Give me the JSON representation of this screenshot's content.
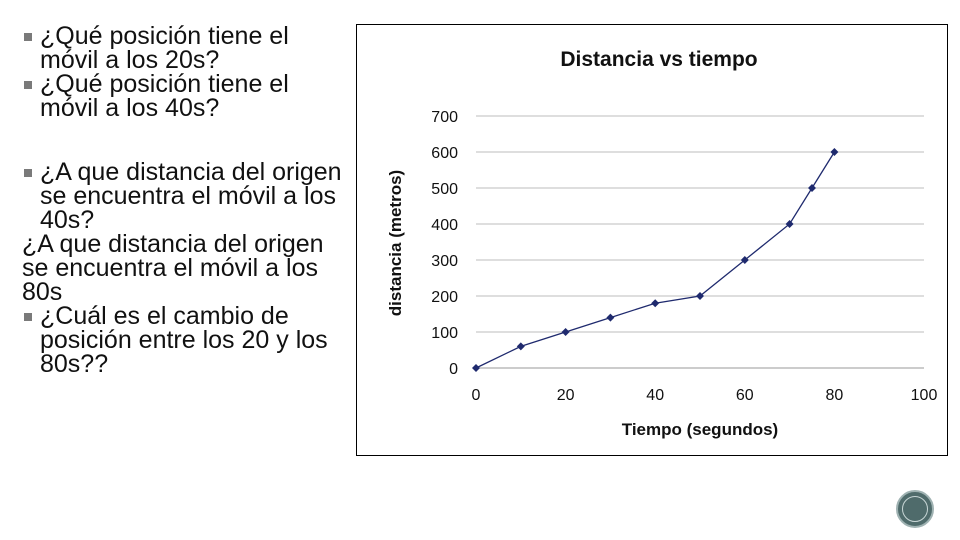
{
  "questions": {
    "q1": "¿Qué posición tiene el móvil a los 20s?",
    "q2": "¿Qué posición tiene el móvil a los 40s?",
    "q3": "¿A que distancia del origen se encuentra el móvil a los 40s?",
    "q4": "¿A que distancia del origen se encuentra el móvil a los 80s",
    "q5": "¿Cuál es el cambio de posición entre los 20 y los 80s??"
  },
  "chart_data": {
    "type": "line",
    "title": "Distancia vs tiempo",
    "xlabel": "Tiempo (segundos)",
    "ylabel": "distancia (metros)",
    "xlim": [
      0,
      100
    ],
    "ylim": [
      0,
      700
    ],
    "xticks": [
      "0",
      "20",
      "40",
      "60",
      "80",
      "100"
    ],
    "yticks": [
      "0",
      "100",
      "200",
      "300",
      "400",
      "500",
      "600",
      "700"
    ],
    "grid": true,
    "legend": "none",
    "series": [
      {
        "x": [
          0,
          10,
          20,
          30,
          40,
          50,
          60,
          70,
          75,
          80
        ],
        "y": [
          0,
          60,
          100,
          140,
          180,
          200,
          300,
          400,
          500,
          600
        ]
      }
    ],
    "line_color": "#1f2a6e"
  }
}
